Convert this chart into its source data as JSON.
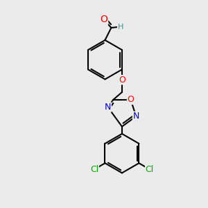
{
  "background_color": "#ebebeb",
  "bond_color": "#000000",
  "bond_width": 1.5,
  "atom_colors": {
    "O": "#ff0000",
    "N": "#0000cc",
    "Cl": "#00aa00",
    "H": "#4a8a8a"
  },
  "font_size": 9,
  "fig_size": [
    3.0,
    3.0
  ],
  "dpi": 100
}
